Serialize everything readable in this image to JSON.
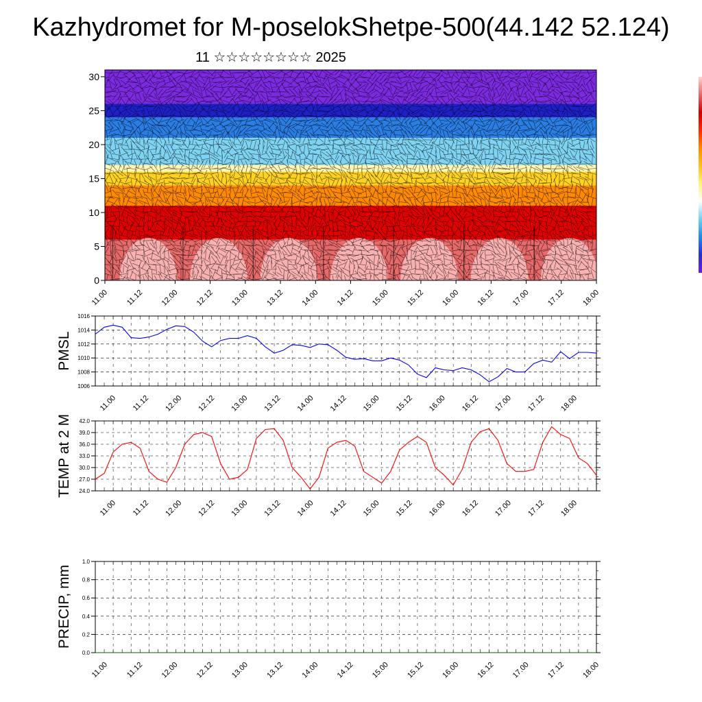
{
  "header": {
    "title": "Kazhydromet for M-poselokShetpe-500(44.142 52.124)",
    "subtitle": "11 ☆☆☆☆☆☆☆☆ 2025"
  },
  "colors": {
    "pmsl_line": "#0000ff",
    "temp_line": "#ff0000",
    "precip_line": "#006400",
    "colorbar": [
      "#6a1fd6",
      "#2b2bd9",
      "#1f8ae6",
      "#6fd0f0",
      "#ffffff",
      "#fff47a",
      "#ffc21f",
      "#ff8a00",
      "#ff2a00",
      "#cc0000",
      "#e66a6a",
      "#ffd0d0"
    ]
  },
  "chart_data": [
    {
      "id": "cross-section",
      "type": "heatmap",
      "title": "",
      "xlabel": "",
      "ylabel": "",
      "categories": [
        "11.00",
        "11.12",
        "12.00",
        "12.12",
        "13.00",
        "13.12",
        "14.00",
        "14.12",
        "15.00",
        "15.12",
        "16.00",
        "16.12",
        "17.00",
        "17.12",
        "18.00"
      ],
      "yticks": [
        0,
        5,
        10,
        15,
        20,
        25,
        30
      ],
      "ylim": [
        0,
        31
      ],
      "value_bands": [
        {
          "from": 0,
          "to": 6,
          "color": "#e66a6a"
        },
        {
          "from": 6,
          "to": 11,
          "color": "#e00000"
        },
        {
          "from": 11,
          "to": 14,
          "color": "#ff8a00"
        },
        {
          "from": 14,
          "to": 16,
          "color": "#ffd21f"
        },
        {
          "from": 16,
          "to": 17,
          "color": "#fff6b0"
        },
        {
          "from": 17,
          "to": 21,
          "color": "#7fd3f2"
        },
        {
          "from": 21,
          "to": 24,
          "color": "#2a7de3"
        },
        {
          "from": 24,
          "to": 26,
          "color": "#1f1fc8"
        },
        {
          "from": 26,
          "to": 31,
          "color": "#7b2ae0"
        }
      ],
      "wind_vectors": true
    },
    {
      "id": "pmsl",
      "type": "line",
      "ylabel": "PMSL",
      "ylim": [
        1006,
        1016
      ],
      "yticks": [
        "1006",
        "1008",
        "1010",
        "1012",
        "1014",
        "1016"
      ],
      "categories": [
        "11.00",
        "11.12",
        "12.00",
        "12.12",
        "13.00",
        "13.12",
        "14.00",
        "14.12",
        "15.00",
        "15.12",
        "16.00",
        "16.12",
        "17.00",
        "17.12",
        "18.00"
      ],
      "x": [
        0,
        3,
        6,
        9,
        12,
        15,
        18,
        21,
        24,
        27,
        30,
        33,
        36,
        39,
        42,
        45,
        48,
        51,
        54,
        57,
        60,
        63,
        66,
        69,
        72,
        75,
        78,
        81,
        84,
        87,
        90,
        93,
        96,
        99,
        102,
        105,
        108,
        111,
        114,
        117,
        120,
        123,
        126,
        129,
        132,
        135,
        138,
        141,
        144,
        147,
        150,
        153,
        156,
        159,
        162,
        165,
        168
      ],
      "series": [
        {
          "values": [
            1013.4,
            1014.4,
            1014.7,
            1014.4,
            1012.9,
            1012.8,
            1013.0,
            1013.4,
            1014.1,
            1014.6,
            1014.5,
            1013.7,
            1012.4,
            1011.6,
            1012.5,
            1012.8,
            1012.8,
            1013.2,
            1012.8,
            1011.6,
            1010.7,
            1011.1,
            1011.9,
            1011.8,
            1011.5,
            1012.0,
            1011.9,
            1011.1,
            1010.1,
            1009.8,
            1009.9,
            1009.6,
            1009.6,
            1010.0,
            1009.7,
            1009.0,
            1007.7,
            1007.2,
            1008.6,
            1008.3,
            1008.2,
            1008.6,
            1008.3,
            1007.6,
            1006.6,
            1007.3,
            1008.5,
            1008.0,
            1008.0,
            1009.2,
            1009.7,
            1009.4,
            1010.9,
            1009.9,
            1010.8,
            1010.8,
            1010.7
          ]
        }
      ]
    },
    {
      "id": "temp",
      "type": "line",
      "ylabel": "TEMP at 2 M",
      "ylim": [
        24,
        42
      ],
      "yticks": [
        "24.0",
        "27.0",
        "30.0",
        "33.0",
        "36.0",
        "39.0",
        "42.0"
      ],
      "categories": [
        "11.00",
        "11.12",
        "12.00",
        "12.12",
        "13.00",
        "13.12",
        "14.00",
        "14.12",
        "15.00",
        "15.12",
        "16.00",
        "16.12",
        "17.00",
        "17.12",
        "18.00"
      ],
      "x": [
        0,
        3,
        6,
        9,
        12,
        15,
        18,
        21,
        24,
        27,
        30,
        33,
        36,
        39,
        42,
        45,
        48,
        51,
        54,
        57,
        60,
        63,
        66,
        69,
        72,
        75,
        78,
        81,
        84,
        87,
        90,
        93,
        96,
        99,
        102,
        105,
        108,
        111,
        114,
        117,
        120,
        123,
        126,
        129,
        132,
        135,
        138,
        141,
        144,
        147,
        150,
        153,
        156,
        159,
        162,
        165,
        168
      ],
      "series": [
        {
          "values": [
            27.0,
            28.5,
            34.0,
            36.0,
            36.5,
            35.0,
            29.0,
            27.0,
            26.2,
            30.0,
            36.0,
            38.5,
            39.0,
            38.0,
            31.0,
            27.0,
            27.5,
            29.5,
            37.5,
            39.8,
            40.0,
            37.0,
            30.0,
            27.5,
            24.5,
            27.5,
            35.0,
            36.5,
            37.0,
            35.5,
            29.0,
            27.5,
            26.0,
            29.0,
            34.5,
            36.5,
            38.0,
            36.5,
            30.0,
            28.0,
            25.5,
            29.5,
            36.5,
            39.2,
            40.0,
            37.0,
            31.0,
            29.0,
            29.0,
            29.5,
            36.5,
            40.5,
            38.5,
            37.5,
            32.5,
            31.0,
            28.0
          ]
        }
      ]
    },
    {
      "id": "precip",
      "type": "line",
      "ylabel": "PRECIP, mm",
      "ylim": [
        0,
        1
      ],
      "yticks": [
        "0.0",
        "0.2",
        "0.4",
        "0.6",
        "0.8",
        "1.0"
      ],
      "categories": [
        "11.00",
        "11.12",
        "12.00",
        "12.12",
        "13.00",
        "13.12",
        "14.00",
        "14.12",
        "15.00",
        "15.12",
        "16.00",
        "16.12",
        "17.00",
        "17.12",
        "18.00"
      ],
      "x": [
        0,
        168
      ],
      "series": [
        {
          "values": [
            0.0,
            0.0
          ]
        }
      ]
    }
  ]
}
